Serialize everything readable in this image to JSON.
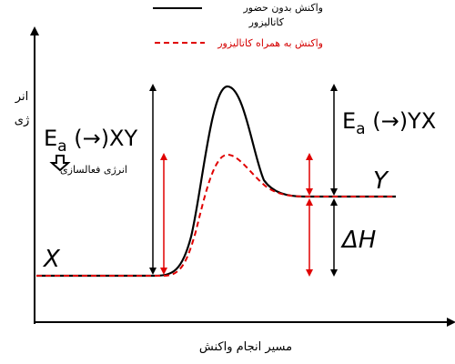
{
  "legend": {
    "uncatalyzed_label_line1": "واکنش بدون حضور",
    "uncatalyzed_label_line2": "کاتالیزور",
    "catalyzed_label": "واکنش به همراه کاتالیزور"
  },
  "axes": {
    "y_label_line1": "انر",
    "y_label_line2": "ژی",
    "x_label": "مسیر انجام واکنش"
  },
  "labels": {
    "reactant": "X",
    "product": "Y",
    "ea_forward_main": "E",
    "ea_forward_sub": "a",
    "ea_forward_rest": " (→)XY",
    "ea_reverse_main": "E",
    "ea_reverse_sub": "a",
    "ea_reverse_rest": " (→)YX",
    "delta_h": "ΔH",
    "activation_energy_note": "انرژی فعالسازی"
  },
  "colors": {
    "uncatalyzed": "#000000",
    "catalyzed": "#e00000",
    "axis": "#000000"
  },
  "icons": {
    "down_arrow": "down-arrow-icon"
  }
}
